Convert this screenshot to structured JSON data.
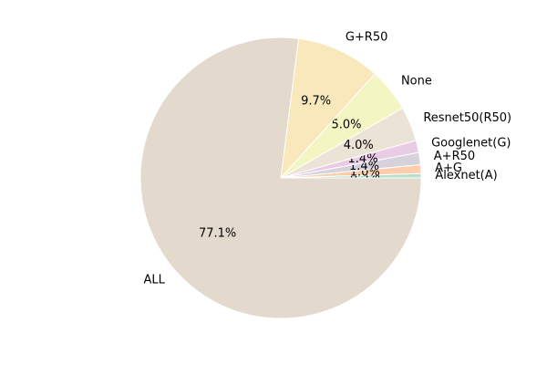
{
  "chart_data": {
    "type": "pie",
    "categories": [
      "Alexnet(A)",
      "A+G",
      "A+R50",
      "Googlenet(G)",
      "Resnet50(R50)",
      "None",
      "G+R50",
      "ALL"
    ],
    "values": [
      0.5,
      1.0,
      1.4,
      1.4,
      4.0,
      5.0,
      9.7,
      77.1
    ],
    "value_labels": [
      "0.5%",
      "1.0%",
      "1.4%",
      "1.4%",
      "4.0%",
      "5.0%",
      "9.7%",
      "77.1%"
    ],
    "colors": [
      "#b3e2cd",
      "#fdcdac",
      "#d6d2dc",
      "#eacbe6",
      "#ebe3d6",
      "#f3f5c2",
      "#f9e8bb",
      "#e3d9cc"
    ]
  }
}
